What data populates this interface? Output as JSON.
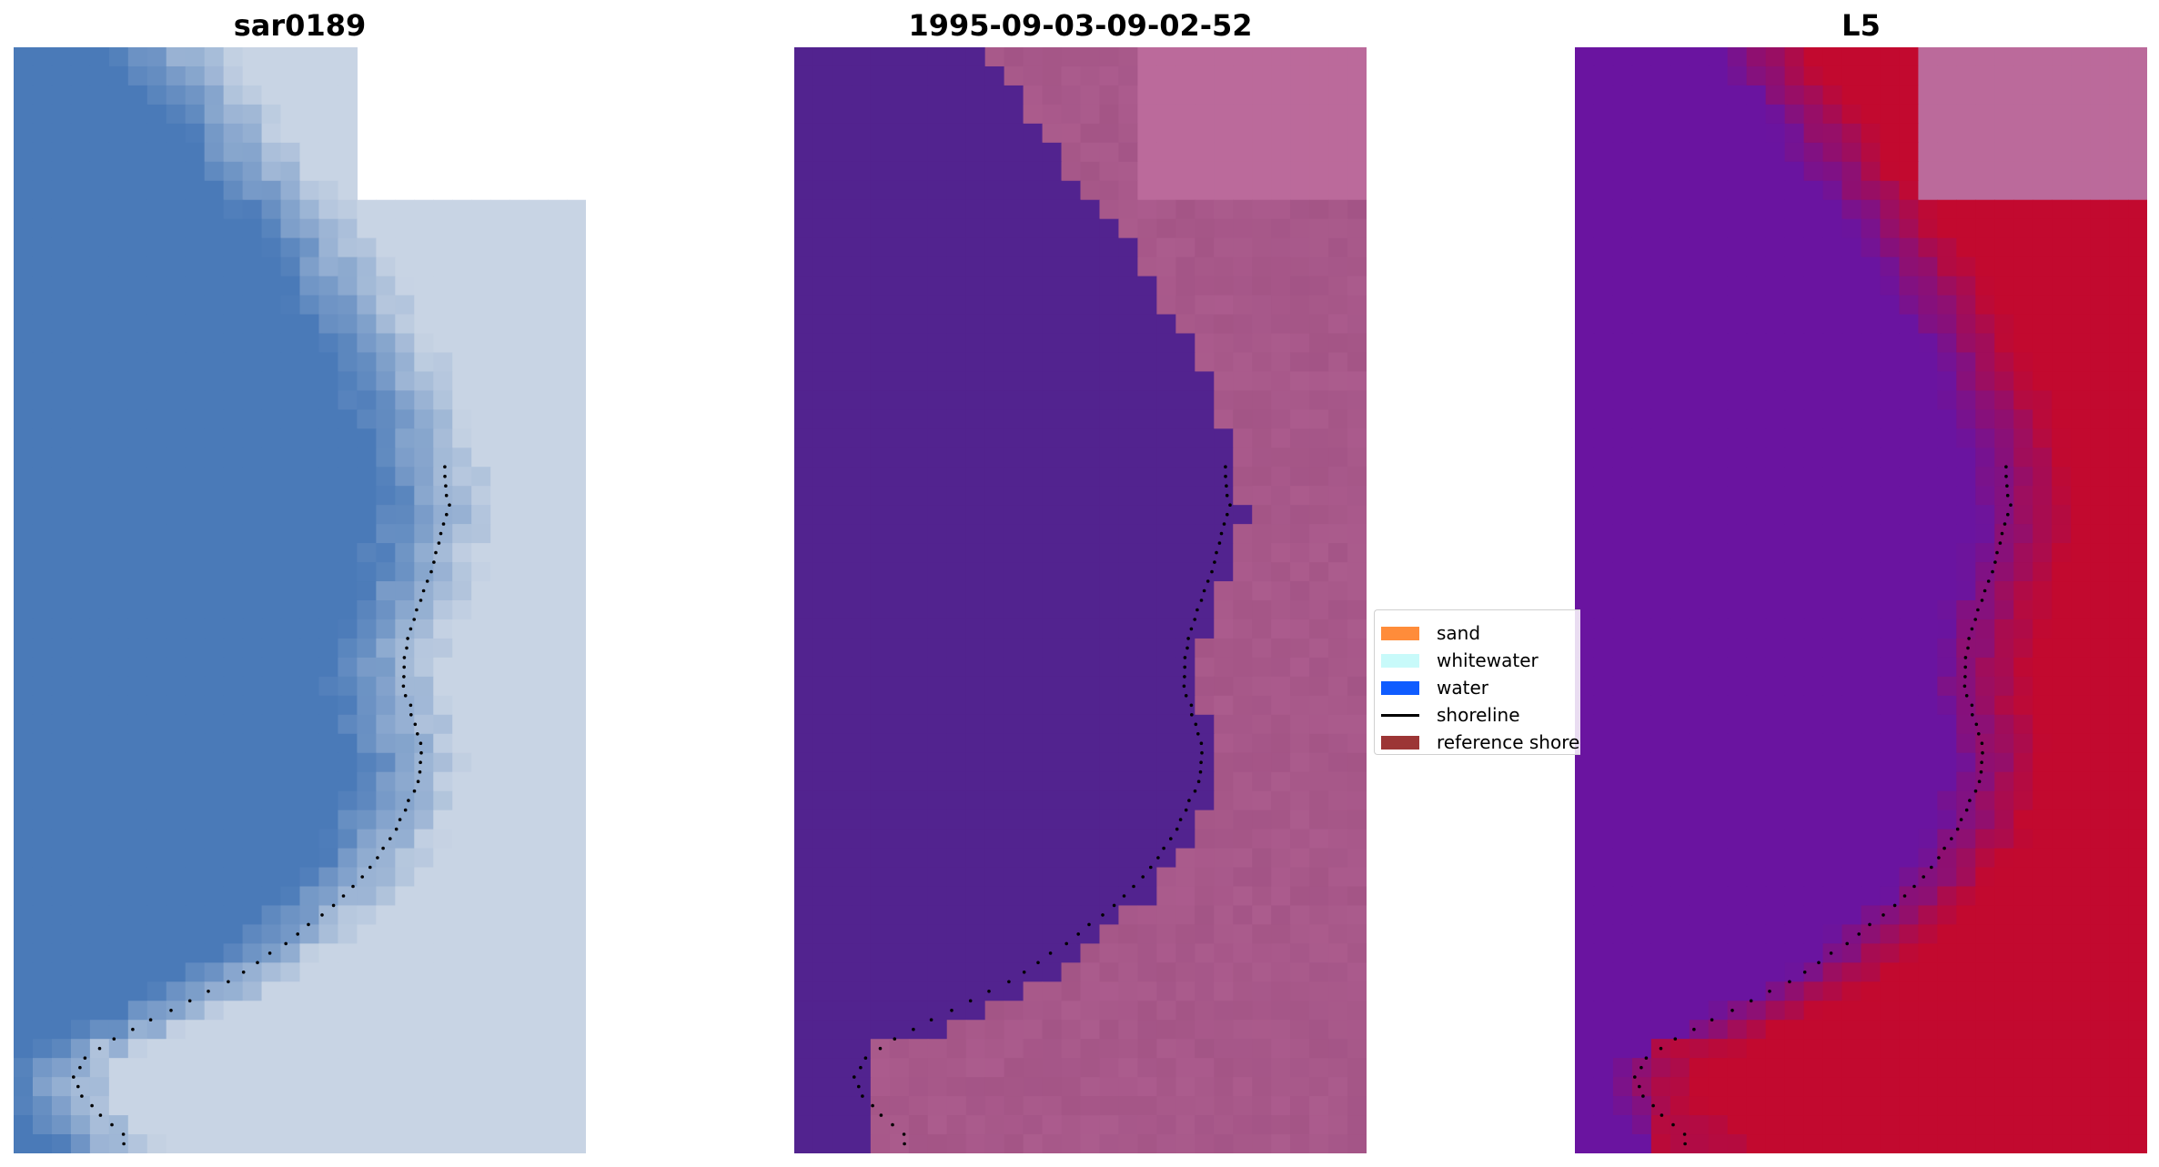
{
  "panels": {
    "rgb": {
      "title": "sar0189"
    },
    "classification": {
      "title": "1995-09-03-09-02-52"
    },
    "index": {
      "title": "L5"
    }
  },
  "legend": {
    "items": [
      {
        "label": "sand",
        "color": "#ff8c3a",
        "kind": "patch"
      },
      {
        "label": "whitewater",
        "color": "#c8fafa",
        "kind": "patch"
      },
      {
        "label": "water",
        "color": "#0f5cff",
        "kind": "patch"
      },
      {
        "label": "shoreline",
        "color": "#000000",
        "kind": "line"
      },
      {
        "label": "reference shoreline",
        "color": "#9c3535",
        "kind": "patch"
      }
    ]
  },
  "colors": {
    "rgb_water": "#4a7ab8",
    "rgb_surf": "#c8d4e4",
    "class_water": "#52238f",
    "class_land": "#b46495",
    "class_nodata": "#bb6a9b",
    "index_water": "#6a14a0",
    "index_land": "#c2092f",
    "index_nodata": "#bb6a9b"
  }
}
